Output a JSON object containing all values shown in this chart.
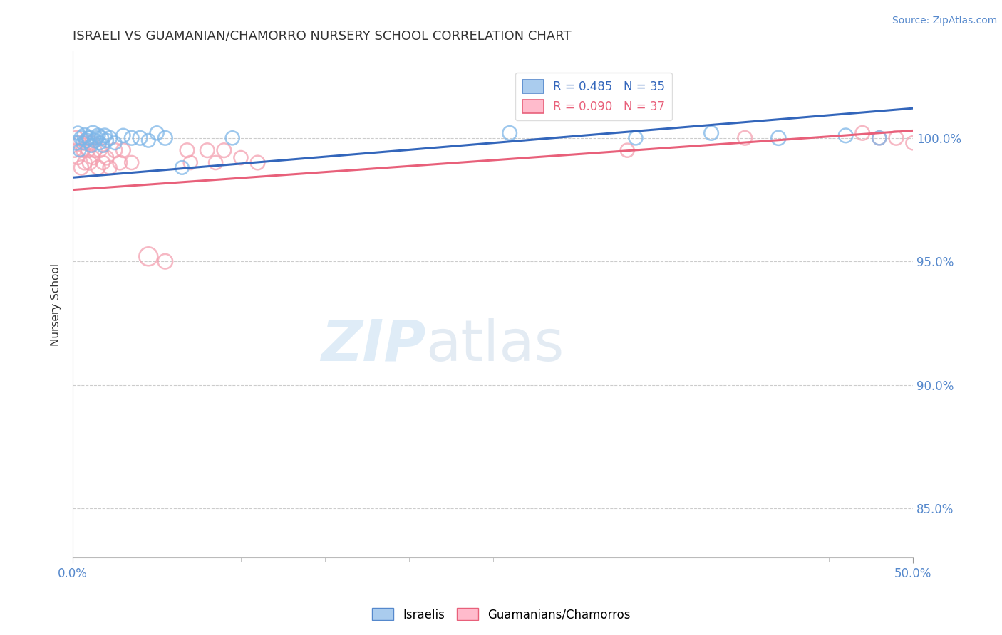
{
  "title": "ISRAELI VS GUAMANIAN/CHAMORRO NURSERY SCHOOL CORRELATION CHART",
  "source": "Source: ZipAtlas.com",
  "ylabel": "Nursery School",
  "xlim": [
    0.0,
    50.0
  ],
  "ylim": [
    83.0,
    103.5
  ],
  "ytick_labels": [
    "85.0%",
    "90.0%",
    "95.0%",
    "100.0%"
  ],
  "ytick_values": [
    85.0,
    90.0,
    95.0,
    100.0
  ],
  "legend_label_blue": "Israelis",
  "legend_label_pink": "Guamanians/Chamorros",
  "blue_color": "#7EB6E8",
  "pink_color": "#F4A0B0",
  "blue_line_color": "#3366BB",
  "pink_line_color": "#E8607A",
  "blue_R": 0.485,
  "blue_N": 35,
  "pink_R": 0.09,
  "pink_N": 37,
  "title_color": "#333333",
  "axis_label_color": "#5588CC",
  "grid_color": "#CCCCCC",
  "blue_trend_x0": 0.0,
  "blue_trend_y0": 98.4,
  "blue_trend_x1": 50.0,
  "blue_trend_y1": 101.2,
  "pink_trend_x0": 0.0,
  "pink_trend_y0": 97.9,
  "pink_trend_x1": 50.0,
  "pink_trend_y1": 100.3,
  "blue_points_x": [
    0.2,
    0.3,
    0.4,
    0.5,
    0.6,
    0.7,
    0.8,
    0.9,
    1.0,
    1.1,
    1.2,
    1.3,
    1.4,
    1.5,
    1.6,
    1.7,
    1.8,
    1.9,
    2.0,
    2.2,
    2.5,
    3.0,
    3.5,
    4.0,
    4.5,
    5.0,
    5.5,
    6.5,
    9.5,
    26.0,
    33.5,
    38.0,
    42.0,
    46.0,
    48.0
  ],
  "blue_points_y": [
    99.8,
    100.2,
    99.5,
    100.0,
    99.8,
    100.1,
    99.9,
    100.0,
    100.0,
    99.7,
    100.2,
    99.9,
    100.0,
    100.1,
    99.8,
    100.0,
    99.7,
    100.1,
    99.9,
    100.0,
    99.8,
    100.1,
    100.0,
    100.0,
    99.9,
    100.2,
    100.0,
    98.8,
    100.0,
    100.2,
    100.0,
    100.2,
    100.0,
    100.1,
    100.0
  ],
  "blue_sizes": [
    200,
    180,
    160,
    200,
    180,
    220,
    200,
    180,
    200,
    190,
    210,
    200,
    190,
    200,
    180,
    200,
    190,
    200,
    190,
    200,
    180,
    190,
    200,
    200,
    180,
    190,
    200,
    180,
    190,
    200,
    190,
    200,
    210,
    200,
    190
  ],
  "pink_points_x": [
    0.1,
    0.2,
    0.3,
    0.4,
    0.5,
    0.6,
    0.7,
    0.8,
    0.9,
    1.0,
    1.1,
    1.2,
    1.3,
    1.5,
    1.6,
    1.8,
    2.0,
    2.2,
    2.5,
    2.8,
    3.0,
    3.5,
    4.5,
    5.5,
    6.8,
    7.0,
    8.0,
    8.5,
    9.0,
    10.0,
    11.0,
    33.0,
    40.0,
    47.0,
    48.0,
    49.0,
    50.0
  ],
  "pink_points_y": [
    99.5,
    100.0,
    99.2,
    99.8,
    98.8,
    99.5,
    99.0,
    99.8,
    99.5,
    99.0,
    99.8,
    99.2,
    99.5,
    98.8,
    99.5,
    99.0,
    99.2,
    98.8,
    99.5,
    99.0,
    99.5,
    99.0,
    95.2,
    95.0,
    99.5,
    99.0,
    99.5,
    99.0,
    99.5,
    99.2,
    99.0,
    99.5,
    100.0,
    100.2,
    100.0,
    100.0,
    99.8
  ],
  "pink_sizes": [
    190,
    200,
    180,
    200,
    210,
    190,
    200,
    220,
    200,
    210,
    200,
    190,
    200,
    210,
    200,
    190,
    200,
    190,
    210,
    200,
    200,
    190,
    350,
    220,
    200,
    190,
    200,
    190,
    200,
    190,
    200,
    190,
    200,
    200,
    190,
    200,
    190
  ]
}
